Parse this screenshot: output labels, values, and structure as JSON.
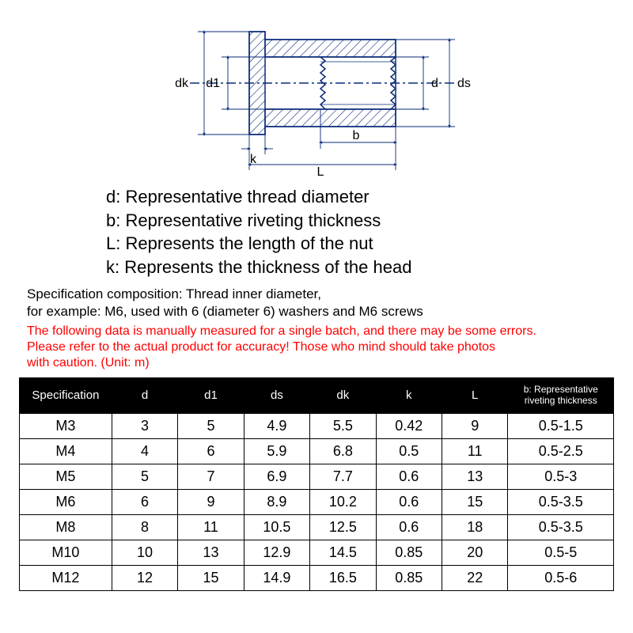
{
  "diagram": {
    "stroke": "#0a2b7a",
    "stroke_width": 1.5,
    "hatch_color": "#0a2b7a",
    "labels": {
      "dk": "dk",
      "d1": "d1",
      "d": "d",
      "ds": "ds",
      "k": "k",
      "b": "b",
      "L": "L"
    },
    "label_fontsize": 16,
    "label_color": "#000000"
  },
  "legend": {
    "d": "d: Representative thread diameter",
    "b": "b: Representative riveting thickness",
    "L": "L: Represents the length of the nut",
    "k": "k: Represents the thickness of the head"
  },
  "spec_note_line1": "Specification composition: Thread inner diameter,",
  "spec_note_line2": "for example: M6, used with 6 (diameter 6) washers and M6 screws",
  "warning_color": "#ff0000",
  "warning_line1": "The following data is manually measured for a single batch, and there may be some errors.",
  "warning_line2": "Please refer to the actual product for accuracy! Those who mind should take photos",
  "warning_line3": "with caution. (Unit: m)",
  "table": {
    "header_bg": "#000000",
    "header_fg": "#ffffff",
    "border_color": "#000000",
    "columns": [
      "Specification",
      "d",
      "d1",
      "ds",
      "dk",
      "k",
      "L",
      "b: Representative riveting thickness"
    ],
    "rows": [
      [
        "M3",
        "3",
        "5",
        "4.9",
        "5.5",
        "0.42",
        "9",
        "0.5-1.5"
      ],
      [
        "M4",
        "4",
        "6",
        "5.9",
        "6.8",
        "0.5",
        "11",
        "0.5-2.5"
      ],
      [
        "M5",
        "5",
        "7",
        "6.9",
        "7.7",
        "0.6",
        "13",
        "0.5-3"
      ],
      [
        "M6",
        "6",
        "9",
        "8.9",
        "10.2",
        "0.6",
        "15",
        "0.5-3.5"
      ],
      [
        "M8",
        "8",
        "11",
        "10.5",
        "12.5",
        "0.6",
        "18",
        "0.5-3.5"
      ],
      [
        "M10",
        "10",
        "13",
        "12.9",
        "14.5",
        "0.85",
        "20",
        "0.5-5"
      ],
      [
        "M12",
        "12",
        "15",
        "14.9",
        "16.5",
        "0.85",
        "22",
        "0.5-6"
      ]
    ]
  }
}
